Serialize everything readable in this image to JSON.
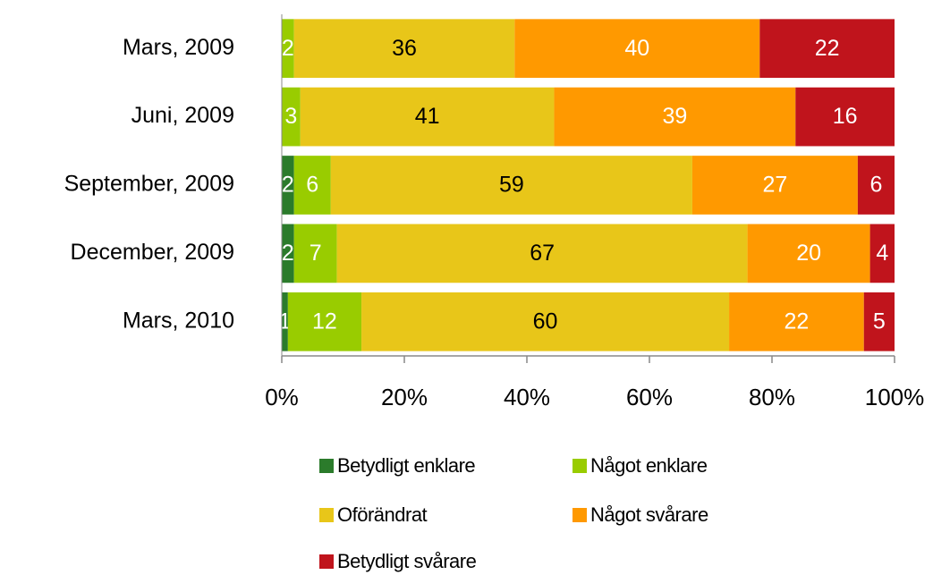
{
  "chart_data": {
    "type": "bar",
    "orientation": "horizontal",
    "stacking": "percent",
    "categories": [
      "Mars, 2009",
      "Juni, 2009",
      "September, 2009",
      "December, 2009",
      "Mars, 2010"
    ],
    "series": [
      {
        "name": "Betydligt enklare",
        "color": "#2b7b2b",
        "label_color": "#ffffff",
        "values": [
          null,
          null,
          2,
          2,
          1
        ]
      },
      {
        "name": "Något enklare",
        "color": "#99cc00",
        "label_color": "#ffffff",
        "values": [
          2,
          3,
          6,
          7,
          12
        ]
      },
      {
        "name": "Oförändrat",
        "color": "#e8c619",
        "label_color": "#000000",
        "values": [
          36,
          41,
          59,
          67,
          60
        ]
      },
      {
        "name": "Något svårare",
        "color": "#ff9900",
        "label_color": "#ffffff",
        "values": [
          40,
          39,
          27,
          20,
          22
        ]
      },
      {
        "name": "Betydligt svårare",
        "color": "#c0141c",
        "label_color": "#ffffff",
        "values": [
          22,
          16,
          6,
          4,
          5
        ]
      }
    ],
    "xlim": [
      0,
      100
    ],
    "xticks": [
      {
        "value": 0,
        "label": "0%"
      },
      {
        "value": 20,
        "label": "20%"
      },
      {
        "value": 40,
        "label": "40%"
      },
      {
        "value": 60,
        "label": "60%"
      },
      {
        "value": 80,
        "label": "80%"
      },
      {
        "value": 100,
        "label": "100%"
      }
    ],
    "legend": "bottom"
  }
}
